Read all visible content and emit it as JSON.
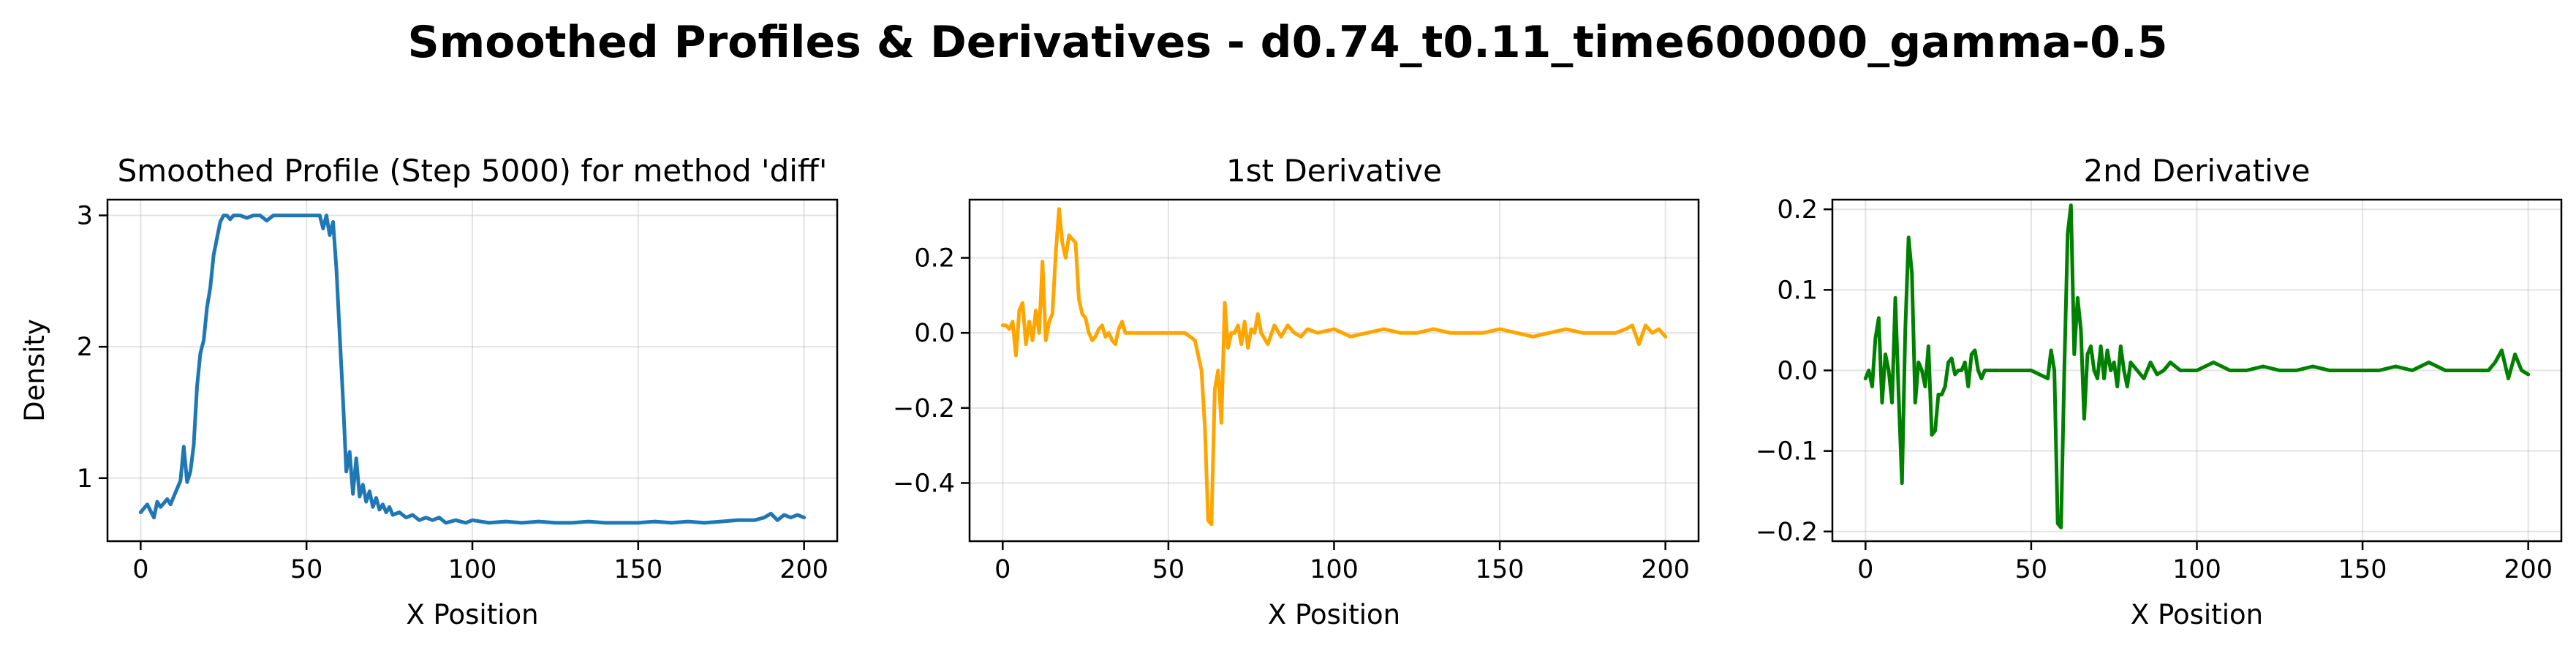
{
  "suptitle": "Smoothed Profiles & Derivatives - d0.74_t0.11_time600000_gamma-0.5",
  "chart_data": [
    {
      "type": "line",
      "title": "Smoothed Profile (Step 5000) for method 'diff'",
      "xlabel": "X Position",
      "ylabel": "Density",
      "xlim": [
        -10,
        210
      ],
      "ylim": [
        0.52,
        3.12
      ],
      "xticks": [
        0,
        50,
        100,
        150,
        200
      ],
      "xtick_labels": [
        "0",
        "50",
        "100",
        "150",
        "200"
      ],
      "yticks": [
        1,
        2,
        3
      ],
      "ytick_labels": [
        "1",
        "2",
        "3"
      ],
      "grid": true,
      "color": "#1f77b4",
      "series": [
        {
          "x": [
            0,
            2,
            4,
            5,
            6,
            8,
            9,
            10,
            12,
            13,
            14,
            15,
            16,
            17,
            18,
            19,
            20,
            21,
            22,
            24,
            25,
            26,
            27,
            28,
            30,
            32,
            34,
            36,
            38,
            40,
            42,
            44,
            46,
            48,
            50,
            52,
            54,
            55,
            56,
            57,
            58,
            59,
            60,
            61,
            62,
            63,
            64,
            65,
            66,
            67,
            68,
            69,
            70,
            71,
            72,
            73,
            74,
            75,
            76,
            78,
            80,
            82,
            84,
            86,
            88,
            90,
            92,
            95,
            98,
            100,
            105,
            110,
            115,
            120,
            125,
            130,
            135,
            140,
            145,
            150,
            155,
            160,
            165,
            170,
            175,
            180,
            185,
            188,
            190,
            192,
            194,
            196,
            198,
            200
          ],
          "y": [
            0.74,
            0.8,
            0.7,
            0.82,
            0.78,
            0.84,
            0.8,
            0.86,
            0.98,
            1.24,
            0.97,
            1.05,
            1.25,
            1.7,
            1.95,
            2.05,
            2.3,
            2.45,
            2.7,
            2.95,
            3.0,
            3.0,
            2.97,
            3.0,
            3.0,
            2.98,
            3.0,
            3.0,
            2.96,
            3.0,
            3.0,
            3.0,
            3.0,
            3.0,
            3.0,
            3.0,
            3.0,
            2.9,
            3.0,
            2.85,
            2.95,
            2.6,
            2.1,
            1.6,
            1.05,
            1.2,
            0.88,
            1.15,
            0.86,
            0.95,
            0.82,
            0.9,
            0.78,
            0.85,
            0.76,
            0.8,
            0.74,
            0.78,
            0.72,
            0.74,
            0.7,
            0.72,
            0.68,
            0.7,
            0.68,
            0.7,
            0.66,
            0.68,
            0.66,
            0.68,
            0.66,
            0.67,
            0.66,
            0.67,
            0.66,
            0.66,
            0.67,
            0.66,
            0.66,
            0.66,
            0.67,
            0.66,
            0.67,
            0.66,
            0.67,
            0.68,
            0.68,
            0.7,
            0.73,
            0.68,
            0.72,
            0.7,
            0.72,
            0.7
          ]
        }
      ]
    },
    {
      "type": "line",
      "title": "1st Derivative",
      "xlabel": "X Position",
      "ylabel": "",
      "xlim": [
        -10,
        210
      ],
      "ylim": [
        -0.555,
        0.355
      ],
      "xticks": [
        0,
        50,
        100,
        150,
        200
      ],
      "xtick_labels": [
        "0",
        "50",
        "100",
        "150",
        "200"
      ],
      "yticks": [
        0.2,
        0.0,
        -0.2,
        -0.4
      ],
      "ytick_labels": [
        "0.2",
        "0.0",
        "−0.2",
        "−0.4"
      ],
      "grid": true,
      "color": "#ffa500",
      "series": [
        {
          "x": [
            0,
            1,
            2,
            3,
            4,
            5,
            6,
            7,
            8,
            9,
            10,
            11,
            12,
            13,
            14,
            15,
            16,
            17,
            18,
            19,
            20,
            21,
            22,
            23,
            24,
            25,
            26,
            27,
            28,
            29,
            30,
            31,
            32,
            33,
            34,
            35,
            36,
            37,
            38,
            40,
            45,
            50,
            55,
            58,
            60,
            61,
            62,
            63,
            64,
            65,
            66,
            67,
            68,
            69,
            70,
            71,
            72,
            73,
            74,
            75,
            76,
            77,
            78,
            80,
            82,
            84,
            86,
            88,
            90,
            92,
            95,
            100,
            105,
            110,
            115,
            120,
            125,
            130,
            135,
            140,
            145,
            150,
            155,
            160,
            165,
            170,
            175,
            180,
            185,
            188,
            190,
            192,
            194,
            196,
            198,
            200
          ],
          "y": [
            0.02,
            0.02,
            0.01,
            0.03,
            -0.06,
            0.06,
            0.08,
            -0.03,
            0.03,
            -0.02,
            0.06,
            0.0,
            0.19,
            -0.02,
            0.03,
            0.05,
            0.21,
            0.33,
            0.24,
            0.2,
            0.26,
            0.25,
            0.24,
            0.09,
            0.05,
            0.04,
            0.0,
            -0.02,
            -0.01,
            0.01,
            0.02,
            -0.01,
            0.0,
            -0.02,
            -0.03,
            0.01,
            0.03,
            0.0,
            0.0,
            0.0,
            0.0,
            0.0,
            0.0,
            -0.02,
            -0.1,
            -0.25,
            -0.5,
            -0.51,
            -0.15,
            -0.1,
            -0.24,
            0.08,
            -0.04,
            0.0,
            0.0,
            0.02,
            -0.03,
            0.03,
            -0.04,
            0.01,
            0.0,
            0.05,
            0.0,
            -0.03,
            0.02,
            -0.01,
            0.02,
            0.0,
            -0.01,
            0.01,
            0.0,
            0.01,
            -0.01,
            0.0,
            0.01,
            0.0,
            0.0,
            0.01,
            0.0,
            0.0,
            0.0,
            0.01,
            0.0,
            -0.01,
            0.0,
            0.01,
            0.0,
            0.0,
            0.0,
            0.01,
            0.02,
            -0.03,
            0.02,
            0.0,
            0.01,
            -0.01
          ]
        }
      ]
    },
    {
      "type": "line",
      "title": "2nd Derivative",
      "xlabel": "X Position",
      "ylabel": "",
      "xlim": [
        -10,
        210
      ],
      "ylim": [
        -0.212,
        0.212
      ],
      "xticks": [
        0,
        50,
        100,
        150,
        200
      ],
      "xtick_labels": [
        "0",
        "50",
        "100",
        "150",
        "200"
      ],
      "yticks": [
        0.2,
        0.1,
        0.0,
        -0.1,
        -0.2
      ],
      "ytick_labels": [
        "0.2",
        "0.1",
        "0.0",
        "−0.1",
        "−0.2"
      ],
      "grid": true,
      "color": "#008000",
      "series": [
        {
          "x": [
            0,
            1,
            2,
            3,
            4,
            5,
            6,
            7,
            8,
            9,
            10,
            11,
            12,
            13,
            14,
            15,
            16,
            17,
            18,
            19,
            20,
            21,
            22,
            23,
            24,
            25,
            26,
            27,
            28,
            29,
            30,
            31,
            32,
            33,
            34,
            35,
            36,
            37,
            38,
            40,
            45,
            50,
            55,
            56,
            57,
            58,
            59,
            60,
            61,
            62,
            63,
            64,
            65,
            66,
            67,
            68,
            69,
            70,
            71,
            72,
            73,
            74,
            75,
            76,
            77,
            78,
            79,
            80,
            82,
            84,
            86,
            88,
            90,
            92,
            95,
            100,
            105,
            110,
            115,
            120,
            125,
            130,
            135,
            140,
            145,
            150,
            155,
            160,
            165,
            170,
            175,
            180,
            185,
            188,
            190,
            192,
            194,
            196,
            198,
            200
          ],
          "y": [
            -0.01,
            0.0,
            -0.02,
            0.04,
            0.065,
            -0.04,
            0.02,
            0.0,
            -0.04,
            0.09,
            -0.03,
            -0.14,
            0.05,
            0.165,
            0.12,
            -0.04,
            0.01,
            0.0,
            -0.02,
            0.03,
            -0.08,
            -0.075,
            -0.03,
            -0.03,
            -0.02,
            0.01,
            0.015,
            -0.005,
            0.0,
            0.0,
            0.01,
            -0.02,
            0.02,
            0.025,
            0.0,
            -0.01,
            0.0,
            0.0,
            0.0,
            0.0,
            0.0,
            0.0,
            -0.01,
            0.025,
            0.0,
            -0.19,
            -0.195,
            0.0,
            0.17,
            0.205,
            0.02,
            0.09,
            0.05,
            -0.06,
            0.02,
            0.03,
            0.0,
            -0.01,
            0.03,
            -0.01,
            0.025,
            0.0,
            0.01,
            -0.02,
            0.03,
            0.0,
            -0.02,
            0.01,
            0.0,
            -0.01,
            0.01,
            -0.005,
            0.0,
            0.01,
            0.0,
            0.0,
            0.01,
            0.0,
            0.0,
            0.005,
            0.0,
            0.0,
            0.005,
            0.0,
            0.0,
            0.0,
            0.0,
            0.005,
            0.0,
            0.01,
            0.0,
            0.0,
            0.0,
            0.0,
            0.01,
            0.025,
            -0.01,
            0.02,
            0.0,
            -0.005
          ]
        }
      ]
    }
  ]
}
